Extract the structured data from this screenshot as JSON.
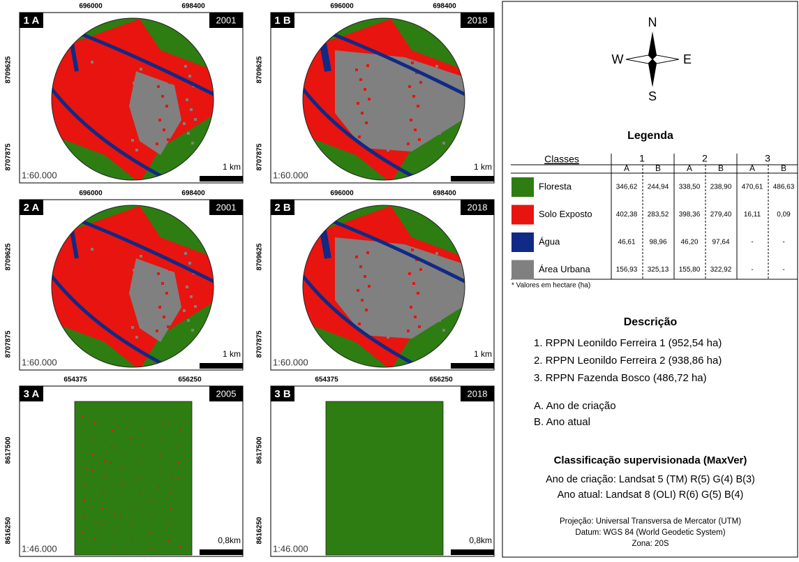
{
  "panels": [
    {
      "label": "1 A",
      "year": "2001",
      "x_coords": [
        "696000",
        "698400"
      ],
      "y_coords": [
        "8709625",
        "8707875"
      ],
      "scale": "1:60.000",
      "scale_bar": "1 km"
    },
    {
      "label": "1 B",
      "year": "2018",
      "x_coords": [
        "696000",
        "698400"
      ],
      "y_coords": [
        "8709625",
        "8707875"
      ],
      "scale": "1:60.000",
      "scale_bar": "1 km"
    },
    {
      "label": "2 A",
      "year": "2001",
      "x_coords": [
        "696000",
        "698400"
      ],
      "y_coords": [
        "8709625",
        "8707875"
      ],
      "scale": "1:60.000",
      "scale_bar": "1 km"
    },
    {
      "label": "2 B",
      "year": "2018",
      "x_coords": [
        "696000",
        "698400"
      ],
      "y_coords": [
        "8709625",
        "8707875"
      ],
      "scale": "1:60.000",
      "scale_bar": "1 km"
    },
    {
      "label": "3 A",
      "year": "2005",
      "x_coords": [
        "654375",
        "656250"
      ],
      "y_coords": [
        "8617500",
        "8616250"
      ],
      "scale": "1:46.000",
      "scale_bar": "0,8km"
    },
    {
      "label": "3 B",
      "year": "2018",
      "x_coords": [
        "654375",
        "656250"
      ],
      "y_coords": [
        "8617500",
        "8616250"
      ],
      "scale": "1:46.000",
      "scale_bar": "0,8km"
    }
  ],
  "compass": {
    "north": "N",
    "west": "W",
    "east": "E",
    "south": "S"
  },
  "legend": {
    "title": "Legenda",
    "header": "Classes",
    "groups": [
      "1",
      "2",
      "3"
    ],
    "subheaders": [
      "A",
      "B",
      "A",
      "B",
      "A",
      "B"
    ],
    "rows": [
      {
        "name": "Floresta",
        "color": "#2e7d12",
        "values": [
          "346,62",
          "244,94",
          "338,50",
          "238,90",
          "470,61",
          "486,63"
        ]
      },
      {
        "name": "Solo Exposto",
        "color": "#e8140f",
        "values": [
          "402,38",
          "283,52",
          "398,36",
          "279,40",
          "16,11",
          "0,09"
        ]
      },
      {
        "name": "Água",
        "color": "#102a85",
        "values": [
          "46,61",
          "98,96",
          "46,20",
          "97,64",
          "-",
          "-"
        ]
      },
      {
        "name": "Área Urbana",
        "color": "#808080",
        "values": [
          "156,93",
          "325,13",
          "155,80",
          "322,92",
          "-",
          "-"
        ]
      }
    ],
    "footnote": "* Valores em hectare (ha)"
  },
  "description": {
    "title": "Descrição",
    "items": [
      "1. RPPN Leonildo Ferreira 1 (952,54 ha)",
      "2. RPPN Leonildo Ferreira 2 (938,86 ha)",
      "3. RPPN Fazenda Bosco (486,72 ha)"
    ],
    "years": [
      "A. Ano de criação",
      "B. Ano atual"
    ]
  },
  "classification": {
    "title": "Classificação supervisionada (MaxVer)",
    "lines": [
      "Ano de criação: Landsat 5 (TM) R(5) G(4) B(3)",
      "Ano atual: Landsat 8 (OLI) R(6) G(5) B(4)"
    ]
  },
  "projection": [
    "Projeção: Universal Transversa de Mercator (UTM)",
    "Datum: WGS 84 (World Geodetic System)",
    "Zona: 20S"
  ]
}
